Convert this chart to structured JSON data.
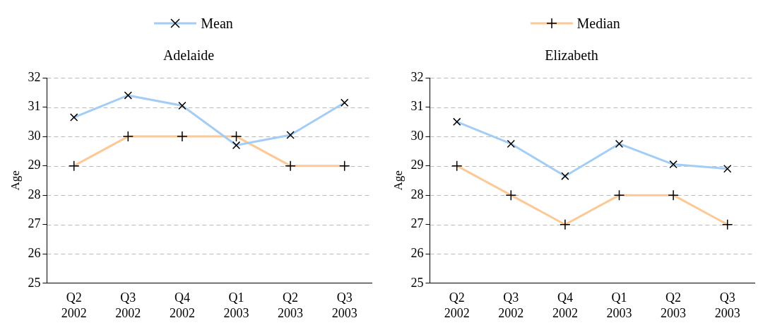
{
  "chart_data": [
    {
      "type": "line",
      "title": "Adelaide",
      "ylabel": "Age",
      "categories": [
        "Q2 2002",
        "Q3 2002",
        "Q4 2002",
        "Q1 2003",
        "Q2 2003",
        "Q3 2003"
      ],
      "ylim": [
        25,
        32
      ],
      "yticks": [
        25,
        26,
        27,
        28,
        29,
        30,
        31,
        32
      ],
      "grid": "y",
      "legend": "top",
      "marker": "cross",
      "series": [
        {
          "name": "Mean",
          "color": "#a4cdf5",
          "values": [
            30.65,
            31.4,
            31.05,
            29.7,
            30.05,
            31.15
          ]
        },
        {
          "name": "Median",
          "color": "#fcc896",
          "values": [
            29,
            30,
            30,
            30,
            29,
            29
          ]
        }
      ]
    },
    {
      "type": "line",
      "title": "Elizabeth",
      "ylabel": "Age",
      "categories": [
        "Q2 2002",
        "Q3 2002",
        "Q4 2002",
        "Q1 2003",
        "Q2 2003",
        "Q3 2003"
      ],
      "ylim": [
        25,
        32
      ],
      "yticks": [
        25,
        26,
        27,
        28,
        29,
        30,
        31,
        32
      ],
      "grid": "y",
      "marker": "cross",
      "series": [
        {
          "color": "#a4cdf5",
          "values": [
            30.5,
            29.75,
            28.65,
            29.75,
            29.05,
            28.9
          ]
        },
        {
          "color": "#fcc896",
          "values": [
            29,
            28,
            27,
            28,
            28,
            27
          ]
        }
      ]
    }
  ]
}
